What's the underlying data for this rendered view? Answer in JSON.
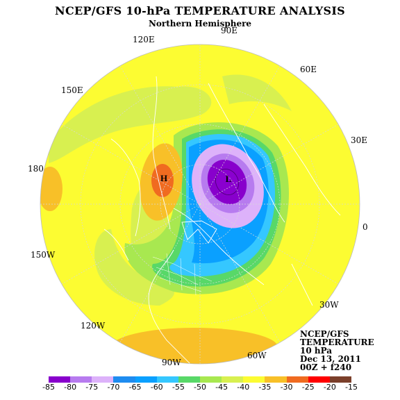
{
  "title": "NCEP/GFS 10-hPa TEMPERATURE ANALYSIS",
  "subtitle": "Northern Hemisphere",
  "longitude_labels": {
    "lon_90e": "90E",
    "lon_120e": "120E",
    "lon_60e": "60E",
    "lon_150e": "150E",
    "lon_30e": "30E",
    "lon_180": "180",
    "lon_0": "0",
    "lon_150w": "150W",
    "lon_30w": "30W",
    "lon_120w": "120W",
    "lon_90w": "90W",
    "lon_60w": "60W"
  },
  "info": {
    "line1": "NCEP/GFS",
    "line2": "TEMPERATURE",
    "line3": "10 hPa",
    "line4": "Dec 13, 2011",
    "line5": "00Z + f240"
  },
  "centers": {
    "high_label": "H",
    "low_label": "L"
  },
  "colorbar": {
    "labels": [
      "-85",
      "-80",
      "-75",
      "-70",
      "-65",
      "-60",
      "-55",
      "-50",
      "-45",
      "-40",
      "-35",
      "-30",
      "-25",
      "-20",
      "-15"
    ],
    "colors": [
      "#8800cc",
      "#b77bef",
      "#ddb2fa",
      "#1e8cf0",
      "#0aa0ff",
      "#35c7ff",
      "#58d868",
      "#a8e850",
      "#d8f050",
      "#fcfc32",
      "#f8c028",
      "#f06b20",
      "#ff0000",
      "#7b3f2a"
    ]
  },
  "map_colors": {
    "ocean_land_lines": "#ffffff",
    "grid_lines": "#d8d8d8"
  }
}
